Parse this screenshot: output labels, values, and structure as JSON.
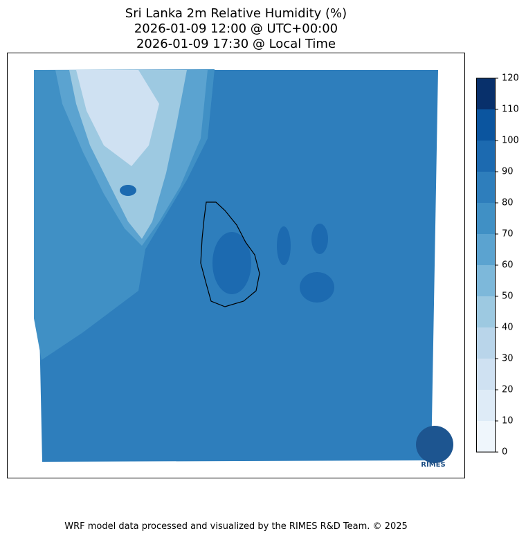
{
  "title": [
    "Sri Lanka 2m Relative Humidity (%)",
    "2026-01-09 12:00 @ UTC+00:00",
    "2026-01-09 17:30 @ Local Time"
  ],
  "colorbar": {
    "levels": [
      0,
      10,
      20,
      30,
      40,
      50,
      60,
      70,
      80,
      90,
      100,
      110,
      120
    ],
    "colors": [
      "#eff6fc",
      "#deebf7",
      "#cfe1f2",
      "#b9d5ea",
      "#9dc9e1",
      "#7db8da",
      "#5ba3d0",
      "#4090c5",
      "#2e7ebc",
      "#1c6ab0",
      "#0b559f",
      "#08306b"
    ]
  },
  "logo": "RIMES",
  "footer": "WRF model data processed and visualized by the RIMES R&D Team. © 2025"
}
